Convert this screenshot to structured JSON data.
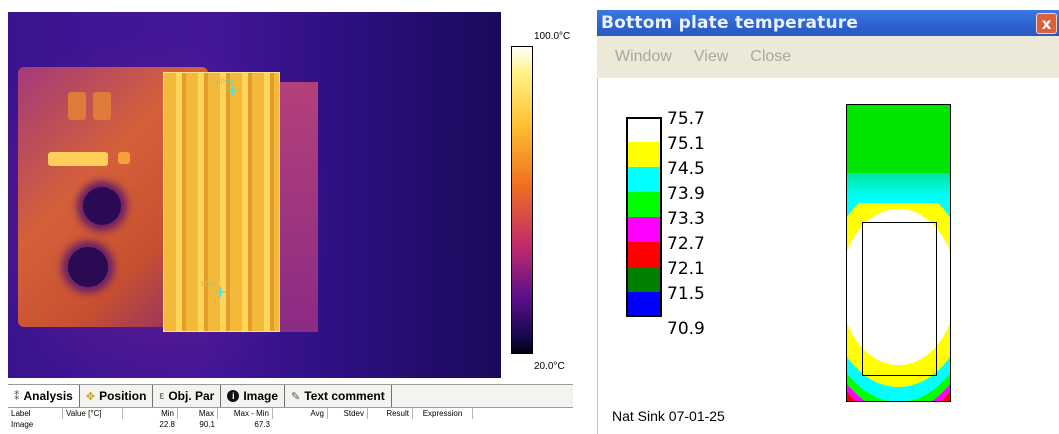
{
  "thermal_app": {
    "colorbar": {
      "max_label": "100.0°C",
      "min_label": "20.0°C"
    },
    "cursors": [
      {
        "label": "SP02"
      },
      {
        "label": "SP01"
      }
    ],
    "tabs": [
      {
        "label": "Analysis",
        "icon": "analysis-icon",
        "active": true
      },
      {
        "label": "Position",
        "icon": "position-icon",
        "active": false
      },
      {
        "label": "Obj. Par",
        "icon": "object-parameters-icon",
        "active": false
      },
      {
        "label": "Image",
        "icon": "info-icon",
        "active": false
      },
      {
        "label": "Text comment",
        "icon": "text-comment-icon",
        "active": false
      }
    ],
    "table": {
      "headers": {
        "label": "Label",
        "value": "Value [°C]",
        "min": "Min",
        "max": "Max",
        "max_min": "Max - Min",
        "avg": "Avg",
        "stdev": "Stdev",
        "result": "Result",
        "expression": "Expression"
      },
      "rows": [
        {
          "label": "Image",
          "value": "",
          "min": "22.8",
          "max": "90.1",
          "max_min": "67.3",
          "avg": "",
          "stdev": "",
          "result": "",
          "expression": ""
        }
      ]
    }
  },
  "plate_window": {
    "title": "Bottom plate temperature",
    "close_glyph": "x",
    "menu": [
      "Window",
      "View",
      "Close"
    ],
    "legend": [
      {
        "label": "75.7",
        "color": "#ffffff"
      },
      {
        "label": "75.1",
        "color": "#ffff00"
      },
      {
        "label": "74.5",
        "color": "#00ffff"
      },
      {
        "label": "73.9",
        "color": "#00ff00"
      },
      {
        "label": "73.3",
        "color": "#ff00ff"
      },
      {
        "label": "72.7",
        "color": "#ff0000"
      },
      {
        "label": "72.1",
        "color": "#008000"
      },
      {
        "label": "71.5",
        "color": "#0000ff"
      },
      {
        "label": "70.9",
        "color": ""
      }
    ],
    "footer": "Nat Sink 07-01-25"
  }
}
